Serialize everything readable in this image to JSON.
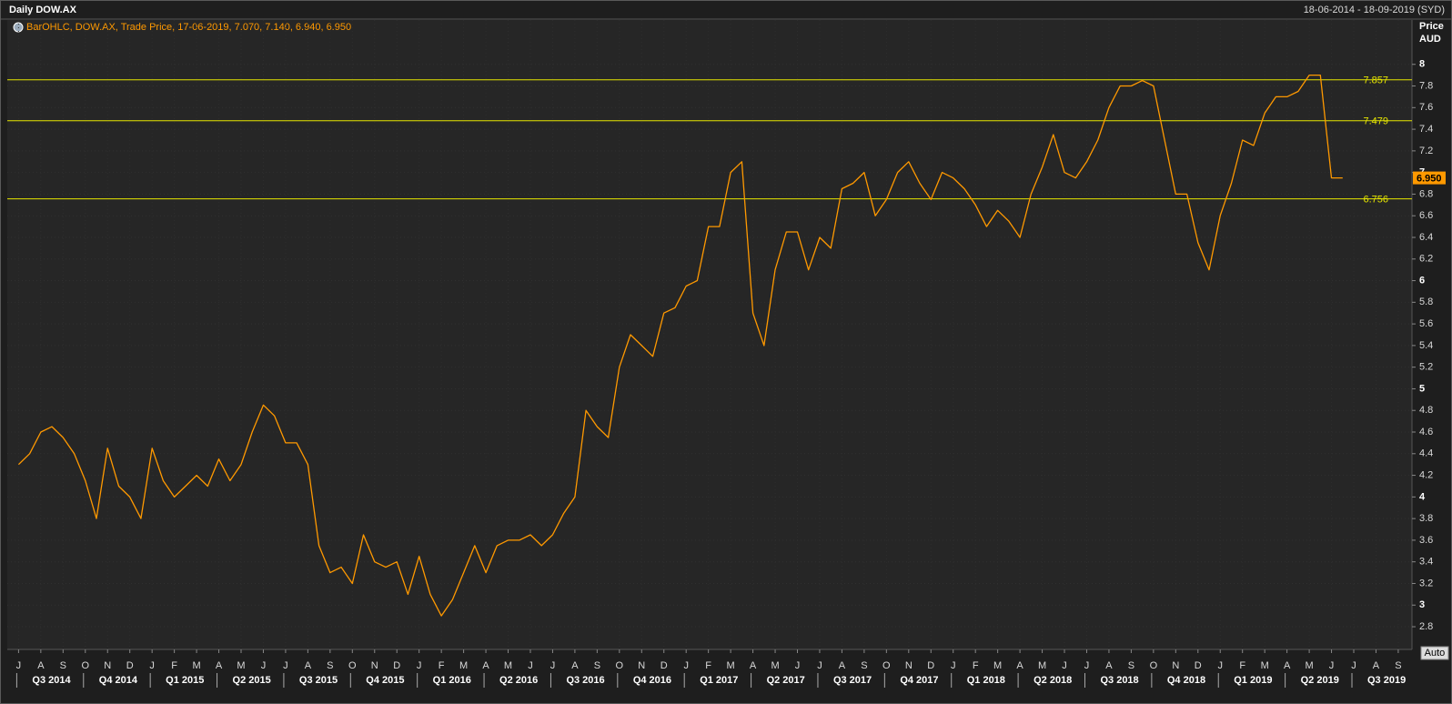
{
  "chart_data": {
    "type": "line",
    "title": "Daily DOW.AX",
    "subtitle": "18-06-2014 - 18-09-2019 (SYD)",
    "legend_text": "BarOHLC, DOW.AX, Trade Price, 17-06-2019, 7.070, 7.140, 6.940, 6.950",
    "y_label": "Price",
    "y_unit": "AUD",
    "button_label": "Auto",
    "color": "#ff9900",
    "line_color": "#e6e600",
    "categories": [
      "J",
      null,
      "A",
      null,
      "S",
      null,
      "O",
      null,
      "N",
      null,
      "D",
      null,
      "J",
      null,
      "F",
      null,
      "M",
      null,
      "A",
      null,
      "M",
      null,
      "J",
      null,
      "J",
      null,
      "A",
      null,
      "S",
      null,
      "O",
      null,
      "N",
      null,
      "D",
      null,
      "J",
      null,
      "F",
      null,
      "M",
      null,
      "A",
      null,
      "M",
      null,
      "J",
      null,
      "J",
      null,
      "A",
      null,
      "S",
      null,
      "O",
      null,
      "N",
      null,
      "D",
      null,
      "J",
      null,
      "F",
      null,
      "M",
      null,
      "A",
      null,
      "M",
      null,
      "J",
      null,
      "J",
      null,
      "A",
      null,
      "S",
      null,
      "O",
      null,
      "N",
      null,
      "D",
      null,
      "J",
      null,
      "F",
      null,
      "M",
      null,
      "A",
      null,
      "M",
      null,
      "J",
      null,
      "J",
      null,
      "A",
      null,
      "S",
      null,
      "O",
      null,
      "N",
      null,
      "D",
      null,
      "J",
      null,
      "F",
      null,
      "M",
      null,
      "A",
      null,
      "M",
      null,
      "J",
      null,
      "J",
      null,
      "A",
      null,
      "S",
      null
    ],
    "values": [
      4.3,
      4.4,
      4.6,
      4.65,
      4.55,
      4.4,
      4.15,
      3.8,
      4.45,
      4.1,
      4.0,
      3.8,
      4.45,
      4.15,
      4.0,
      4.1,
      4.2,
      4.1,
      4.35,
      4.15,
      4.3,
      4.6,
      4.85,
      4.75,
      4.5,
      4.5,
      4.3,
      3.55,
      3.3,
      3.35,
      3.2,
      3.65,
      3.4,
      3.35,
      3.4,
      3.1,
      3.45,
      3.1,
      2.9,
      3.05,
      3.3,
      3.55,
      3.3,
      3.55,
      3.6,
      3.6,
      3.65,
      3.55,
      3.65,
      3.85,
      4.0,
      4.8,
      4.65,
      4.55,
      5.2,
      5.5,
      5.4,
      5.3,
      5.7,
      5.75,
      5.95,
      6.0,
      6.5,
      6.5,
      7.0,
      7.1,
      5.7,
      5.4,
      6.1,
      6.45,
      6.45,
      6.1,
      6.4,
      6.3,
      6.85,
      6.9,
      7.0,
      6.6,
      6.75,
      7.0,
      7.1,
      6.9,
      6.75,
      7.0,
      6.95,
      6.85,
      6.7,
      6.5,
      6.65,
      6.55,
      6.4,
      6.8,
      7.05,
      7.35,
      7.0,
      6.95,
      7.1,
      7.3,
      7.6,
      7.8,
      7.8,
      7.85,
      7.8,
      7.3,
      6.8,
      6.8,
      6.35,
      6.1,
      6.6,
      6.9,
      7.3,
      7.25,
      7.55,
      7.7,
      7.7,
      7.75,
      7.9,
      7.9,
      6.95,
      6.95,
      null,
      null,
      null,
      null,
      null,
      null
    ],
    "quarters": [
      "Q3 2014",
      "Q4 2014",
      "Q1 2015",
      "Q2 2015",
      "Q3 2015",
      "Q4 2015",
      "Q1 2016",
      "Q2 2016",
      "Q3 2016",
      "Q4 2016",
      "Q1 2017",
      "Q2 2017",
      "Q3 2017",
      "Q4 2017",
      "Q1 2018",
      "Q2 2018",
      "Q3 2018",
      "Q4 2018",
      "Q1 2019",
      "Q2 2019",
      "Q3 2019"
    ],
    "ylim": [
      2.59,
      8.41
    ],
    "yticks": [
      2.8,
      3,
      3.2,
      3.4,
      3.6,
      3.8,
      4,
      4.2,
      4.4,
      4.6,
      4.8,
      5,
      5.2,
      5.4,
      5.6,
      5.8,
      6,
      6.2,
      6.4,
      6.6,
      6.8,
      7,
      7.2,
      7.4,
      7.6,
      7.8,
      8
    ],
    "hlines": [
      7.857,
      7.479,
      6.756
    ],
    "last_price": {
      "value": 6.95,
      "label": "6.950"
    }
  }
}
